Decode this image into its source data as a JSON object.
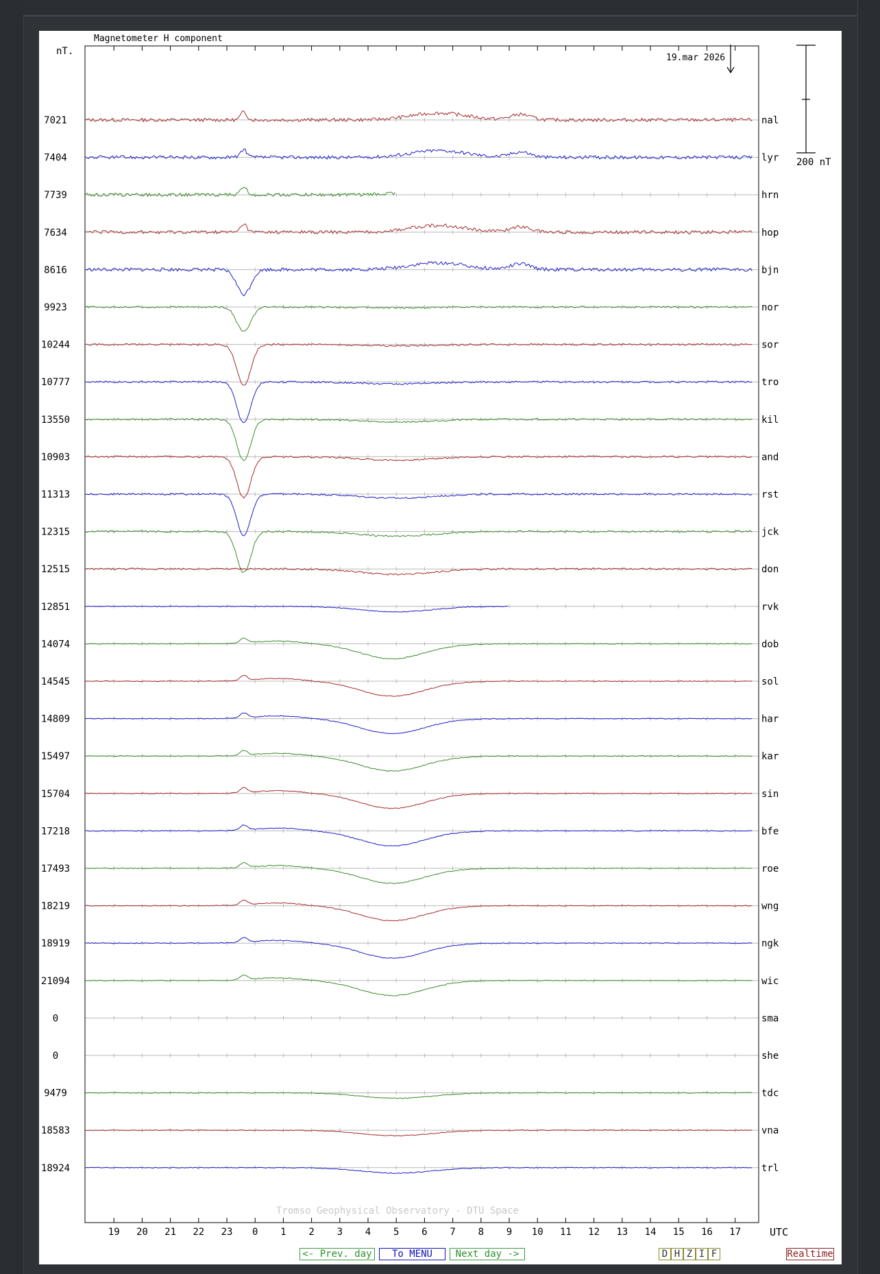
{
  "chart_data": {
    "type": "line",
    "title": "Magnetometer H component",
    "unit_label": "nT.",
    "date_label": "19.mar 2026",
    "scale_label": "200 nT",
    "watermark": "Tromso Geophysical Observatory - DTU Space",
    "xlabel": "UTC",
    "x_ticks": [
      "19",
      "20",
      "21",
      "22",
      "23",
      "0",
      "1",
      "2",
      "3",
      "4",
      "5",
      "6",
      "7",
      "8",
      "9",
      "10",
      "11",
      "12",
      "13",
      "14",
      "15",
      "16",
      "17"
    ],
    "colors": {
      "red": "#a52a2a",
      "blue": "#1c1cc8",
      "green": "#3a8a2a",
      "grid": "#b8b8b8"
    },
    "stations": [
      {
        "name": "nal",
        "baseline": "7021",
        "color": "red"
      },
      {
        "name": "lyr",
        "baseline": "7404",
        "color": "blue"
      },
      {
        "name": "hrn",
        "baseline": "7739",
        "color": "green"
      },
      {
        "name": "hop",
        "baseline": "7634",
        "color": "red"
      },
      {
        "name": "bjn",
        "baseline": "8616",
        "color": "blue"
      },
      {
        "name": "nor",
        "baseline": "9923",
        "color": "green"
      },
      {
        "name": "sor",
        "baseline": "10244",
        "color": "red"
      },
      {
        "name": "tro",
        "baseline": "10777",
        "color": "blue"
      },
      {
        "name": "kil",
        "baseline": "13550",
        "color": "green"
      },
      {
        "name": "and",
        "baseline": "10903",
        "color": "red"
      },
      {
        "name": "rst",
        "baseline": "11313",
        "color": "blue"
      },
      {
        "name": "jck",
        "baseline": "12315",
        "color": "green"
      },
      {
        "name": "don",
        "baseline": "12515",
        "color": "red"
      },
      {
        "name": "rvk",
        "baseline": "12851",
        "color": "blue"
      },
      {
        "name": "dob",
        "baseline": "14074",
        "color": "green"
      },
      {
        "name": "sol",
        "baseline": "14545",
        "color": "red"
      },
      {
        "name": "har",
        "baseline": "14809",
        "color": "blue"
      },
      {
        "name": "kar",
        "baseline": "15497",
        "color": "green"
      },
      {
        "name": "sin",
        "baseline": "15704",
        "color": "red"
      },
      {
        "name": "bfe",
        "baseline": "17218",
        "color": "blue"
      },
      {
        "name": "roe",
        "baseline": "17493",
        "color": "green"
      },
      {
        "name": "wng",
        "baseline": "18219",
        "color": "red"
      },
      {
        "name": "ngk",
        "baseline": "18919",
        "color": "blue"
      },
      {
        "name": "wic",
        "baseline": "21094",
        "color": "green"
      },
      {
        "name": "sma",
        "baseline": "0",
        "color": "none"
      },
      {
        "name": "she",
        "baseline": "0",
        "color": "none"
      },
      {
        "name": "tdc",
        "baseline": "9479",
        "color": "green"
      },
      {
        "name": "vna",
        "baseline": "18583",
        "color": "red"
      },
      {
        "name": "trl",
        "baseline": "18924",
        "color": "blue"
      }
    ]
  },
  "nav": {
    "prev_label": "<- Prev. day",
    "menu_label": "To MENU",
    "next_label": "Next day ->",
    "components": [
      "D",
      "H",
      "Z",
      "I",
      "F"
    ],
    "realtime_label": "Realtime"
  }
}
